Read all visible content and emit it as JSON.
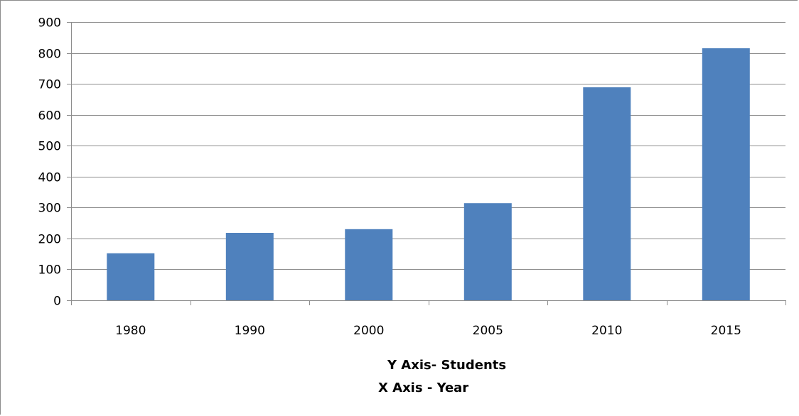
{
  "chart_data": {
    "type": "bar",
    "categories": [
      "1980",
      "1990",
      "2000",
      "2005",
      "2010",
      "2015"
    ],
    "values": [
      152,
      218,
      230,
      314,
      689,
      815
    ],
    "ylim": [
      0,
      900
    ],
    "yticks": [
      0,
      100,
      200,
      300,
      400,
      500,
      600,
      700,
      800,
      900
    ],
    "ytick_labels": [
      "0",
      "100",
      "200",
      "300",
      "400",
      "500",
      "600",
      "700",
      "800",
      "900"
    ],
    "grid": true,
    "bar_color": "#4f81bd",
    "annotations": [
      "Y Axis- Students",
      "X Axis - Year"
    ]
  }
}
